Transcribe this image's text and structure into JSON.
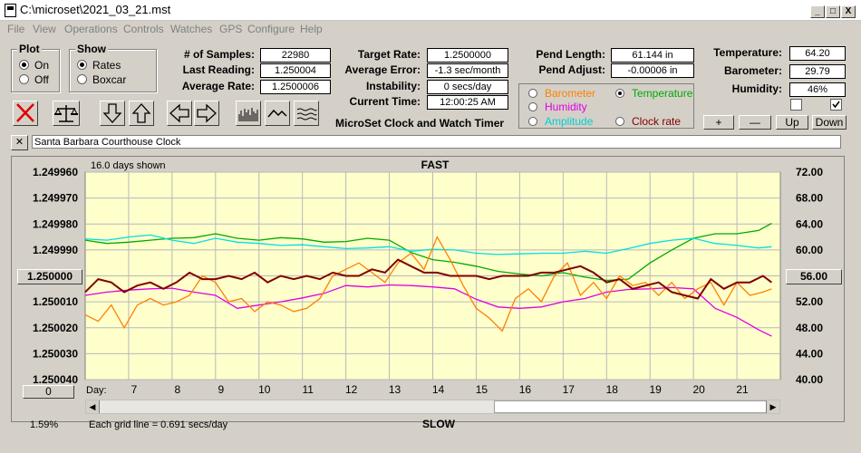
{
  "title": "C:\\microset\\2021_03_21.mst",
  "menu": [
    "File",
    "View",
    "Operations",
    "Controls",
    "Watches",
    "GPS",
    "Configure",
    "Help"
  ],
  "window_buttons": {
    "minimize": "_",
    "maximize": "□",
    "close": "X"
  },
  "plot_group": {
    "label": "Plot",
    "on": "On",
    "off": "Off",
    "selected": "On"
  },
  "show_group": {
    "label": "Show",
    "rates": "Rates",
    "boxcar": "Boxcar",
    "selected": "Rates"
  },
  "stats": {
    "samples_label": "# of Samples:",
    "samples": "22980",
    "last_reading_label": "Last Reading:",
    "last_reading": "1.250004",
    "average_rate_label": "Average Rate:",
    "average_rate": "1.2500006",
    "target_rate_label": "Target Rate:",
    "target_rate": "1.2500000",
    "average_error_label": "Average Error:",
    "average_error": "-1.3 sec/month",
    "instability_label": "Instability:",
    "instability": "0 secs/day",
    "current_time_label": "Current Time:",
    "current_time": "12:00:25 AM",
    "pend_length_label": "Pend Length:",
    "pend_length": "61.144 in",
    "pend_adjust_label": "Pend Adjust:",
    "pend_adjust": "-0.00006 in",
    "temperature_label": "Temperature:",
    "temperature": "64.20",
    "barometer_label": "Barometer:",
    "barometer": "29.79",
    "humidity_label": "Humidity:",
    "humidity": "46%"
  },
  "app_name": "MicroSet Clock and Watch Timer",
  "sensor_select": {
    "barometer": "Barometer",
    "temperature": "Temperature",
    "humidity": "Humidity",
    "amplitude": "Amplitude",
    "clock_rate": "Clock rate",
    "selected": "Temperature"
  },
  "scale_buttons": {
    "plus": "+",
    "minus": "—",
    "up": "Up",
    "down": "Down"
  },
  "clock_name": "Santa Barbara Courthouse Clock",
  "clear_name": "✕",
  "colors": {
    "plot_bg": "#ffffcc",
    "barometer": "#ff8000",
    "temperature": "#00aa00",
    "humidity": "#e000e0",
    "amplitude": "#00e0e0",
    "rate": "#800000"
  },
  "chart_data": {
    "type": "line",
    "days_shown": "16.0 days shown",
    "top_label": "FAST",
    "bottom_label": "SLOW",
    "grid_note": "Each grid line = 0.691 secs/day",
    "percent": "1.59%",
    "day_label": "Day:",
    "x_ticks": [
      "7",
      "8",
      "9",
      "10",
      "11",
      "12",
      "13",
      "14",
      "15",
      "16",
      "17",
      "18",
      "19",
      "20",
      "21"
    ],
    "x_range": [
      6.0,
      22.0
    ],
    "y_left_ticks": [
      "1.249960",
      "1.249970",
      "1.249980",
      "1.249990",
      "1.250000",
      "1.250010",
      "1.250020",
      "1.250030",
      "1.250040"
    ],
    "y_left_range": [
      1.24996,
      1.25004
    ],
    "y_left_inverted": true,
    "y_right_ticks": [
      "72.00",
      "68.00",
      "64.00",
      "60.00",
      "56.00",
      "52.00",
      "48.00",
      "44.00",
      "40.00"
    ],
    "y_right_range": [
      40,
      72
    ],
    "left_button": "1.250000",
    "right_button": "56.00",
    "bottom_button": "0",
    "series": [
      {
        "name": "Temperature",
        "color": "#00aa00",
        "x": [
          6.0,
          6.5,
          7.0,
          7.5,
          8.0,
          8.5,
          9.0,
          9.5,
          10.0,
          10.5,
          11.0,
          11.5,
          12.0,
          12.5,
          13.0,
          13.5,
          14.0,
          14.5,
          15.0,
          15.5,
          16.0,
          16.5,
          17.0,
          17.5,
          18.0,
          18.5,
          19.0,
          19.5,
          20.0,
          20.5,
          21.0,
          21.5,
          21.8
        ],
        "y": [
          61.5,
          61.0,
          61.2,
          61.5,
          61.8,
          61.9,
          62.5,
          61.8,
          61.5,
          61.9,
          61.7,
          61.2,
          61.3,
          61.8,
          61.5,
          59.6,
          58.5,
          58.1,
          57.5,
          56.7,
          56.3,
          56.0,
          56.5,
          55.8,
          55.3,
          55.5,
          58.0,
          60.0,
          61.8,
          62.5,
          62.5,
          63.0,
          64.1
        ]
      },
      {
        "name": "Amplitude",
        "color": "#00e0e0",
        "x": [
          6.0,
          6.5,
          7.0,
          7.5,
          8.0,
          8.5,
          9.0,
          9.5,
          10.0,
          10.5,
          11.0,
          11.5,
          12.0,
          12.5,
          13.0,
          13.5,
          14.0,
          14.5,
          15.0,
          15.5,
          16.0,
          16.5,
          17.0,
          17.5,
          18.0,
          18.5,
          19.0,
          19.5,
          20.0,
          20.5,
          21.0,
          21.5,
          21.8
        ],
        "y": [
          61.7,
          61.5,
          62.0,
          62.3,
          61.5,
          61.0,
          61.8,
          61.2,
          61.0,
          60.7,
          60.8,
          60.5,
          60.2,
          60.3,
          60.5,
          59.8,
          60.1,
          60.0,
          59.5,
          59.3,
          59.4,
          59.5,
          59.5,
          59.8,
          59.5,
          60.2,
          61.0,
          61.5,
          61.8,
          61.0,
          60.7,
          60.3,
          60.5
        ]
      },
      {
        "name": "Humidity",
        "color": "#e000e0",
        "x": [
          6.0,
          6.5,
          7.0,
          7.5,
          8.0,
          8.5,
          9.0,
          9.5,
          10.0,
          10.5,
          11.0,
          11.5,
          12.0,
          12.5,
          13.0,
          13.5,
          14.0,
          14.5,
          15.0,
          15.5,
          16.0,
          16.5,
          17.0,
          17.5,
          18.0,
          18.5,
          19.0,
          19.5,
          20.0,
          20.5,
          21.0,
          21.5,
          21.8
        ],
        "y": [
          53.0,
          53.5,
          53.8,
          54.0,
          54.1,
          53.5,
          53.0,
          51.0,
          51.5,
          52.0,
          52.6,
          53.3,
          54.5,
          54.3,
          54.6,
          54.5,
          54.3,
          54.0,
          52.4,
          51.2,
          51.0,
          51.2,
          52.0,
          52.5,
          53.5,
          53.9,
          54.0,
          54.2,
          54.0,
          51.0,
          49.6,
          47.7,
          46.7
        ]
      },
      {
        "name": "Barometer",
        "color": "#ff8000",
        "x": [
          6.0,
          6.3,
          6.6,
          6.9,
          7.2,
          7.5,
          7.8,
          8.1,
          8.4,
          8.7,
          9.0,
          9.3,
          9.6,
          9.9,
          10.2,
          10.5,
          10.8,
          11.1,
          11.4,
          11.7,
          12.0,
          12.3,
          12.6,
          12.9,
          13.2,
          13.5,
          13.8,
          14.1,
          14.4,
          14.7,
          15.0,
          15.3,
          15.6,
          15.9,
          16.2,
          16.5,
          16.8,
          17.1,
          17.4,
          17.7,
          18.0,
          18.3,
          18.6,
          18.9,
          19.2,
          19.5,
          19.8,
          20.1,
          20.4,
          20.7,
          21.0,
          21.3,
          21.6,
          21.8
        ],
        "y": [
          50.0,
          49.0,
          51.5,
          48.0,
          51.5,
          52.5,
          51.5,
          52.0,
          53.0,
          56.0,
          55.0,
          52.0,
          52.5,
          50.5,
          52.0,
          51.5,
          50.5,
          51.0,
          52.5,
          56.0,
          57.0,
          58.0,
          56.5,
          55.0,
          58.0,
          59.5,
          57.0,
          62.0,
          58.5,
          54.5,
          51.0,
          49.5,
          47.5,
          52.5,
          54.0,
          52.0,
          56.0,
          58.0,
          53.0,
          55.0,
          52.5,
          56.0,
          54.5,
          55.0,
          53.0,
          55.0,
          52.5,
          54.0,
          55.0,
          51.5,
          55.0,
          53.0,
          53.5,
          54.0
        ]
      },
      {
        "name": "Rate",
        "color": "#800000",
        "x": [
          6.0,
          6.3,
          6.6,
          6.9,
          7.2,
          7.5,
          7.8,
          8.1,
          8.4,
          8.7,
          9.0,
          9.3,
          9.6,
          9.9,
          10.2,
          10.5,
          10.8,
          11.1,
          11.4,
          11.7,
          12.0,
          12.3,
          12.6,
          12.9,
          13.2,
          13.5,
          13.8,
          14.1,
          14.4,
          14.7,
          15.0,
          15.3,
          15.6,
          15.9,
          16.2,
          16.5,
          16.8,
          17.1,
          17.4,
          17.7,
          18.0,
          18.3,
          18.6,
          18.9,
          19.2,
          19.5,
          19.8,
          20.1,
          20.4,
          20.7,
          21.0,
          21.3,
          21.6,
          21.8
        ],
        "y": [
          53.5,
          55.5,
          55.0,
          53.5,
          54.5,
          55.0,
          54.0,
          55.0,
          56.5,
          55.5,
          55.5,
          56.0,
          55.5,
          56.5,
          55.0,
          56.0,
          55.5,
          56.0,
          55.5,
          56.5,
          56.0,
          56.0,
          57.0,
          56.5,
          58.5,
          57.5,
          56.5,
          56.5,
          56.0,
          56.0,
          56.0,
          55.5,
          56.0,
          56.0,
          56.0,
          56.5,
          56.5,
          57.0,
          57.5,
          56.5,
          55.0,
          55.5,
          54.0,
          54.5,
          55.0,
          53.5,
          53.0,
          52.5,
          55.5,
          54.0,
          55.0,
          55.0,
          56.0,
          55.0
        ]
      }
    ]
  }
}
